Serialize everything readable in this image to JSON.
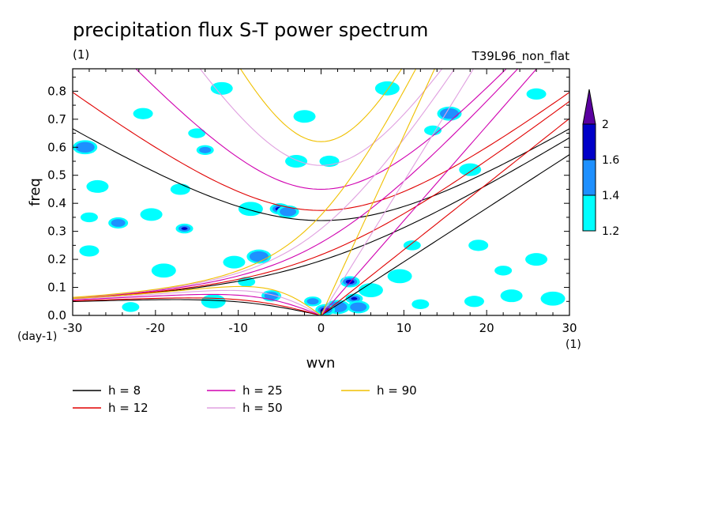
{
  "chart_data": {
    "type": "heatmap",
    "title": "precipitation flux S-T power spectrum",
    "subtitle_left": "(1)",
    "subtitle_right": "T39L96_non_flat",
    "xlabel": "wvn",
    "ylabel": "freq",
    "x_unit": "(1)",
    "y_unit": "(day-1)",
    "xlim": [
      -30,
      30
    ],
    "ylim": [
      0,
      0.88
    ],
    "x_ticks": [
      -30,
      -20,
      -10,
      0,
      10,
      20,
      30
    ],
    "x_tick_labels": [
      "-30",
      "-20",
      "-10",
      "0",
      "10",
      "20",
      "30"
    ],
    "y_ticks": [
      0,
      0.1,
      0.2,
      0.3,
      0.4,
      0.5,
      0.6,
      0.7,
      0.8
    ],
    "y_tick_labels": [
      "0.0",
      "0.1",
      "0.2",
      "0.3",
      "0.4",
      "0.5",
      "0.6",
      "0.7",
      "0.8"
    ],
    "color_scale": {
      "levels": [
        1.2,
        1.4,
        1.6,
        2
      ],
      "level_labels": [
        "1.2",
        "1.4",
        "1.6",
        "2"
      ],
      "colors": [
        "#00ffff",
        "#1e90ff",
        "#0000c8",
        "#5a00a0"
      ]
    },
    "contour_patches": [
      {
        "x": 4.0,
        "y": 0.06,
        "level": 3
      },
      {
        "x": 3.5,
        "y": 0.12,
        "level": 3
      },
      {
        "x": 4.5,
        "y": 0.03,
        "level": 2
      },
      {
        "x": 2.0,
        "y": 0.03,
        "level": 2
      },
      {
        "x": -16.5,
        "y": 0.31,
        "level": 3
      },
      {
        "x": -5.0,
        "y": 0.38,
        "level": 3
      },
      {
        "x": -4.0,
        "y": 0.37,
        "level": 2
      },
      {
        "x": -8.5,
        "y": 0.38,
        "level": 1
      },
      {
        "x": -28.0,
        "y": 0.35,
        "level": 1
      },
      {
        "x": -24.5,
        "y": 0.33,
        "level": 2
      },
      {
        "x": -20.5,
        "y": 0.36,
        "level": 1
      },
      {
        "x": -13.0,
        "y": 0.05,
        "level": 1
      },
      {
        "x": -9.0,
        "y": 0.12,
        "level": 1
      },
      {
        "x": -6.0,
        "y": 0.07,
        "level": 2
      },
      {
        "x": -10.5,
        "y": 0.19,
        "level": 1
      },
      {
        "x": -7.5,
        "y": 0.21,
        "level": 2
      },
      {
        "x": 12.0,
        "y": 0.04,
        "level": 1
      },
      {
        "x": 18.5,
        "y": 0.05,
        "level": 1
      },
      {
        "x": 23.0,
        "y": 0.07,
        "level": 1
      },
      {
        "x": 28.0,
        "y": 0.06,
        "level": 1
      },
      {
        "x": 11.0,
        "y": 0.25,
        "level": 1
      },
      {
        "x": 19.0,
        "y": 0.25,
        "level": 1
      },
      {
        "x": 26.0,
        "y": 0.2,
        "level": 1
      },
      {
        "x": 15.5,
        "y": 0.72,
        "level": 2
      },
      {
        "x": 13.5,
        "y": 0.66,
        "level": 1
      },
      {
        "x": -21.5,
        "y": 0.72,
        "level": 1
      },
      {
        "x": -12.0,
        "y": 0.81,
        "level": 1
      },
      {
        "x": -28.5,
        "y": 0.6,
        "level": 2
      },
      {
        "x": -14.0,
        "y": 0.59,
        "level": 2
      },
      {
        "x": 1.0,
        "y": 0.55,
        "level": 1
      },
      {
        "x": 18.0,
        "y": 0.52,
        "level": 1
      },
      {
        "x": -19.0,
        "y": 0.16,
        "level": 1
      },
      {
        "x": -23.0,
        "y": 0.03,
        "level": 1
      },
      {
        "x": -28.0,
        "y": 0.23,
        "level": 1
      },
      {
        "x": -2.0,
        "y": 0.71,
        "level": 1
      },
      {
        "x": 8.0,
        "y": 0.81,
        "level": 1
      },
      {
        "x": 22.0,
        "y": 0.16,
        "level": 1
      },
      {
        "x": -17.0,
        "y": 0.45,
        "level": 1
      },
      {
        "x": -3.0,
        "y": 0.55,
        "level": 1
      },
      {
        "x": 6.0,
        "y": 0.09,
        "level": 1
      },
      {
        "x": -1.0,
        "y": 0.05,
        "level": 2
      },
      {
        "x": 0.5,
        "y": 0.02,
        "level": 3
      },
      {
        "x": -27.0,
        "y": 0.46,
        "level": 1
      },
      {
        "x": 9.5,
        "y": 0.14,
        "level": 1
      },
      {
        "x": -15.0,
        "y": 0.65,
        "level": 1
      },
      {
        "x": 26.0,
        "y": 0.79,
        "level": 1
      }
    ],
    "dispersion_curves": [
      {
        "name": "h =  8",
        "color": "#000000"
      },
      {
        "name": "h = 12",
        "color": "#e00000"
      },
      {
        "name": "h = 25",
        "color": "#d000b0"
      },
      {
        "name": "h = 50",
        "color": "#e0a0e0"
      },
      {
        "name": "h = 90",
        "color": "#f0c000"
      }
    ],
    "legend_position": "bottom"
  }
}
